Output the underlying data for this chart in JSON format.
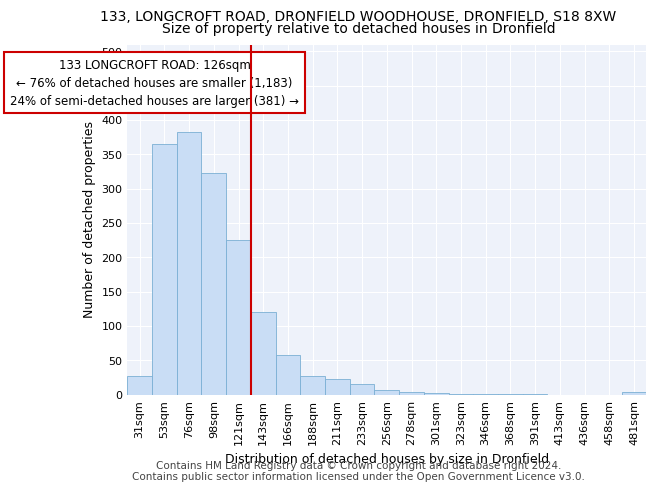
{
  "title_line1": "133, LONGCROFT ROAD, DRONFIELD WOODHOUSE, DRONFIELD, S18 8XW",
  "title_line2": "Size of property relative to detached houses in Dronfield",
  "xlabel": "Distribution of detached houses by size in Dronfield",
  "ylabel": "Number of detached properties",
  "categories": [
    "31sqm",
    "53sqm",
    "76sqm",
    "98sqm",
    "121sqm",
    "143sqm",
    "166sqm",
    "188sqm",
    "211sqm",
    "233sqm",
    "256sqm",
    "278sqm",
    "301sqm",
    "323sqm",
    "346sqm",
    "368sqm",
    "391sqm",
    "413sqm",
    "436sqm",
    "458sqm",
    "481sqm"
  ],
  "values": [
    27,
    365,
    382,
    323,
    225,
    120,
    57,
    27,
    22,
    15,
    7,
    3,
    2,
    1,
    1,
    1,
    1,
    0,
    0,
    0,
    4
  ],
  "bar_color": "#c9ddf5",
  "bar_edge_color": "#7bafd4",
  "vline_x": 4.5,
  "vline_color": "#cc0000",
  "annotation_text": "133 LONGCROFT ROAD: 126sqm\n← 76% of detached houses are smaller (1,183)\n24% of semi-detached houses are larger (381) →",
  "annotation_box_color": "#ffffff",
  "annotation_box_edge": "#cc0000",
  "ylim": [
    0,
    510
  ],
  "yticks": [
    0,
    50,
    100,
    150,
    200,
    250,
    300,
    350,
    400,
    450,
    500
  ],
  "footer_text": "Contains HM Land Registry data © Crown copyright and database right 2024.\nContains public sector information licensed under the Open Government Licence v3.0.",
  "background_color": "#eef2fa",
  "grid_color": "#ffffff",
  "title_fontsize": 10,
  "subtitle_fontsize": 10,
  "axis_label_fontsize": 9,
  "tick_fontsize": 8,
  "footer_fontsize": 7.5
}
